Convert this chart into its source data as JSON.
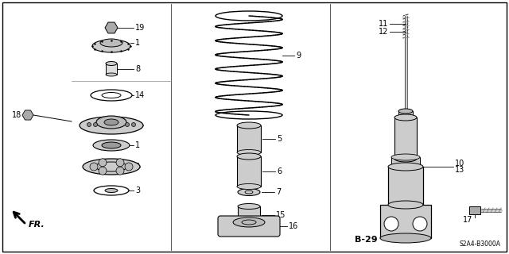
{
  "bg_color": "#ffffff",
  "border_color": "#000000",
  "page_ref": "B-29",
  "diagram_ref": "S2A4-B3000A",
  "fr_label": "FR."
}
